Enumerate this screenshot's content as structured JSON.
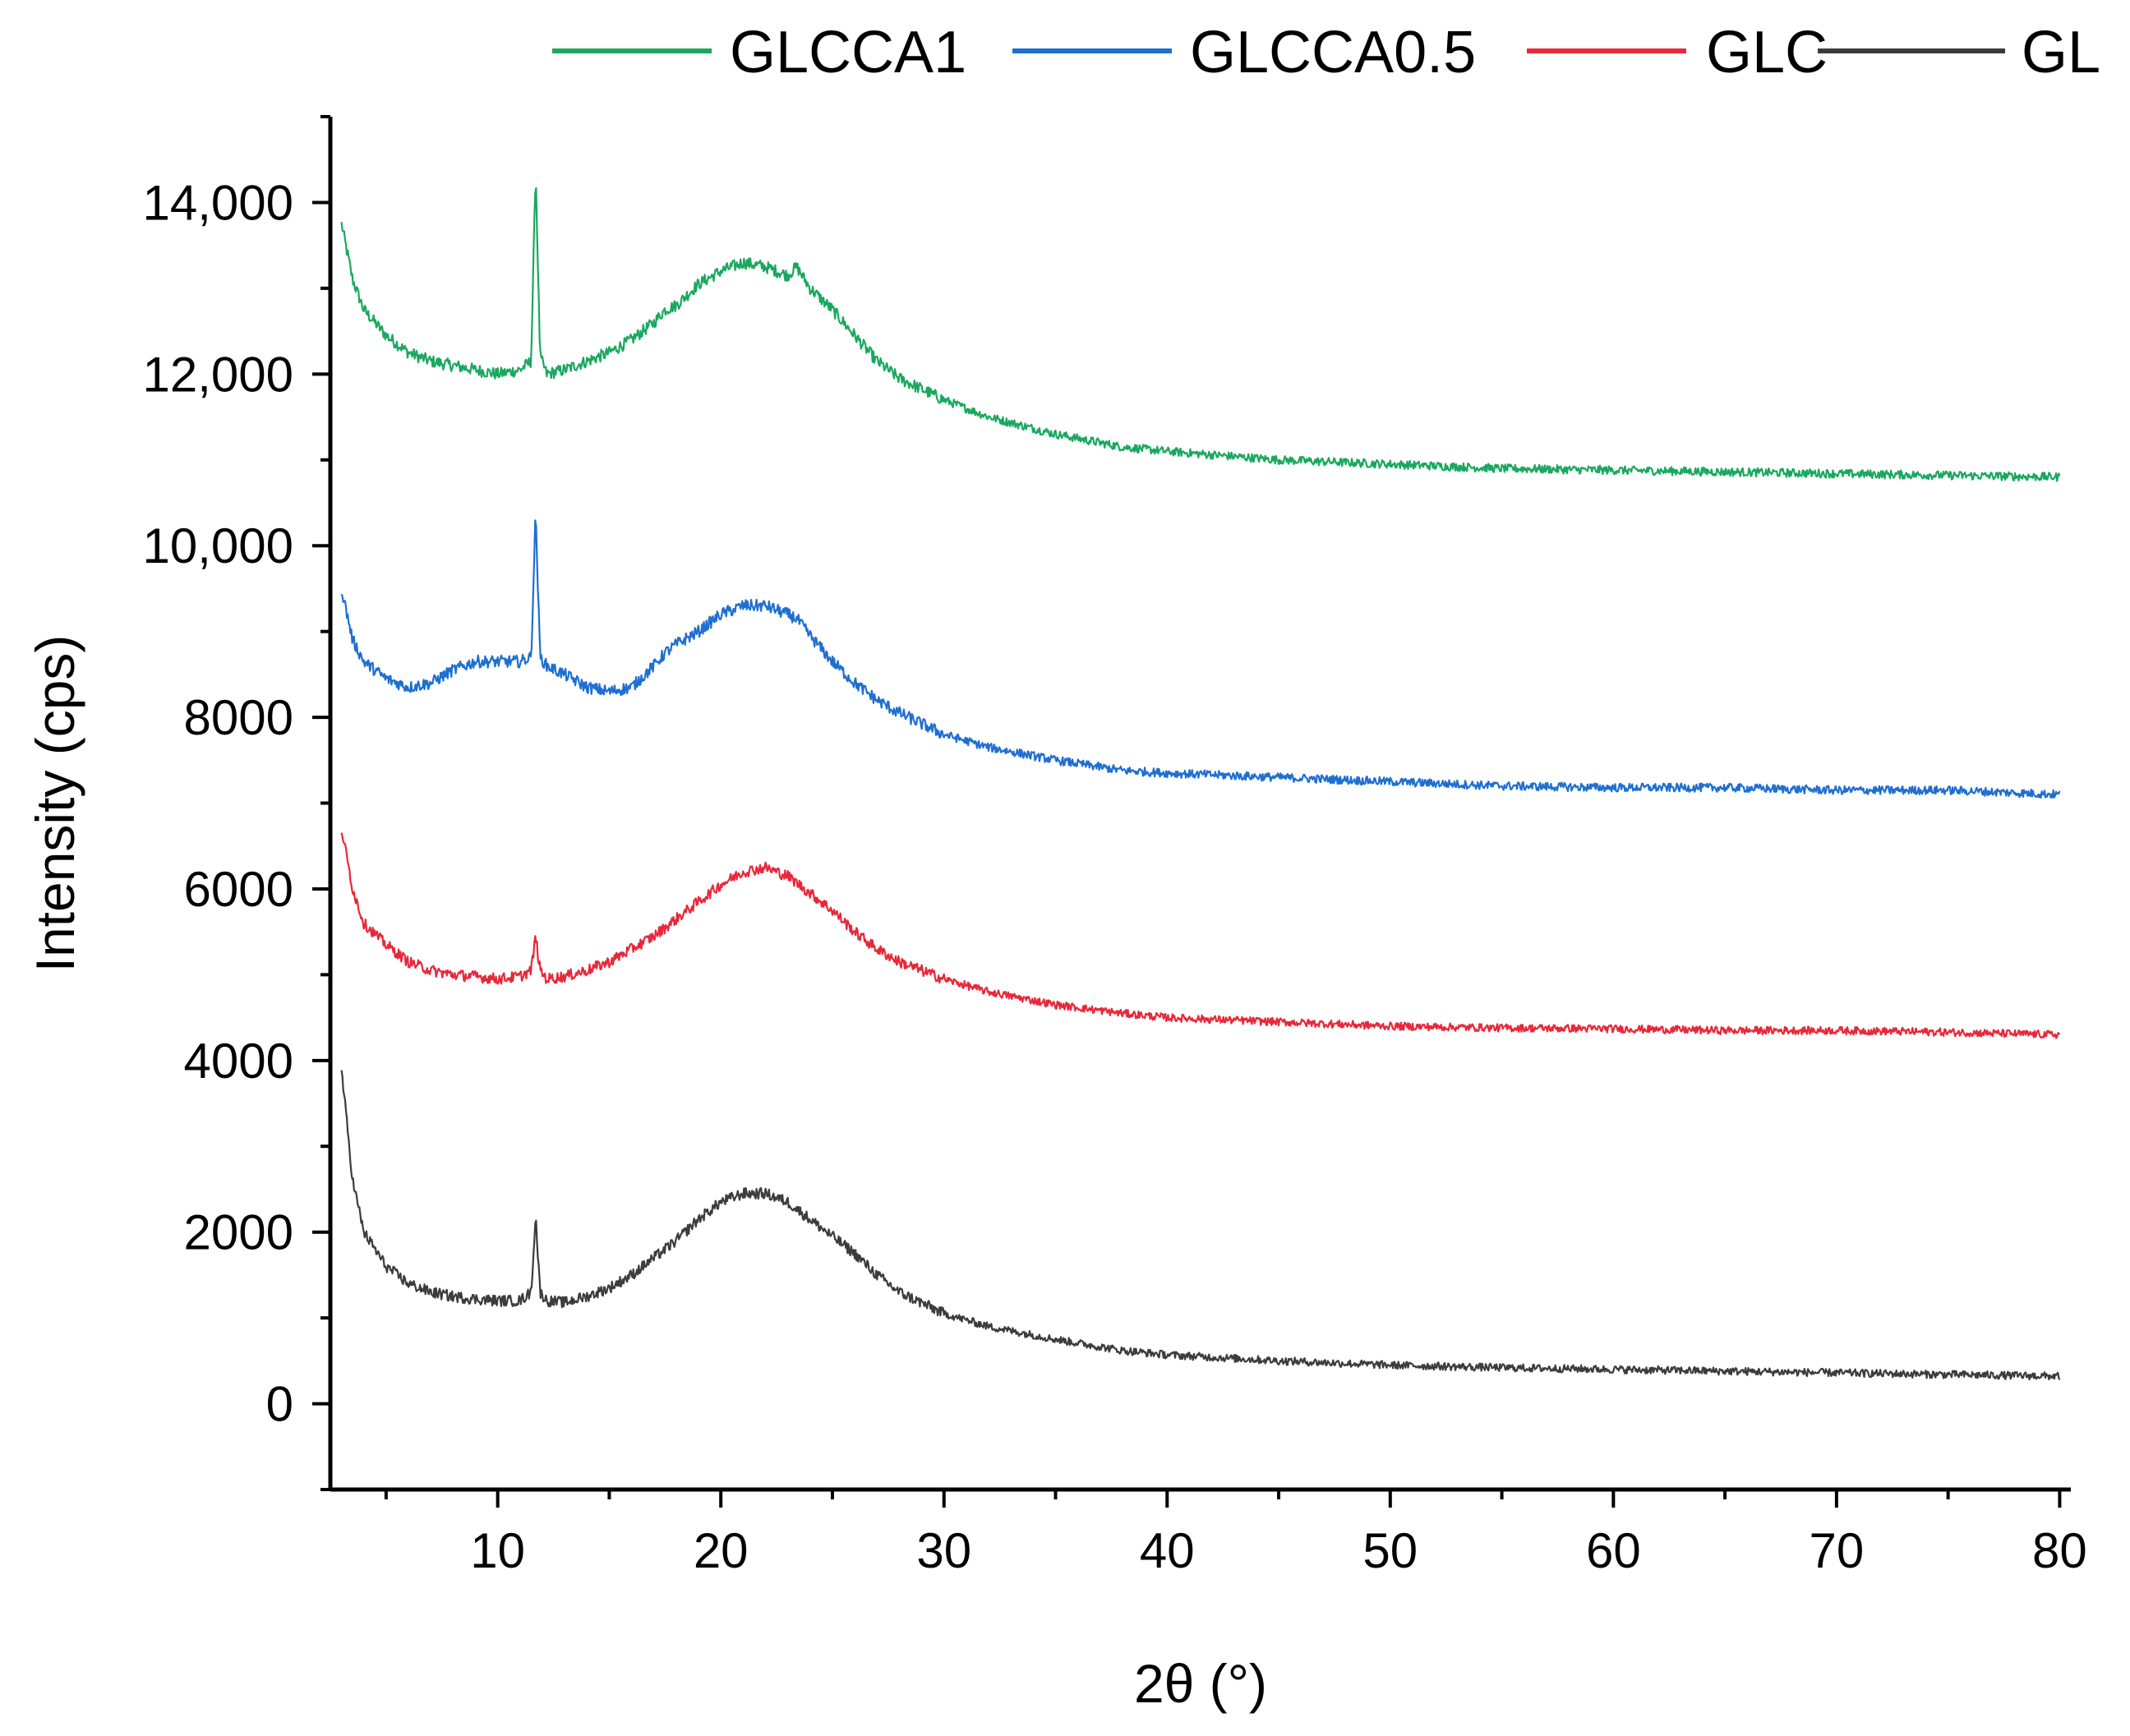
{
  "chart_data": {
    "type": "line",
    "title": "",
    "xlabel": "2θ (°)",
    "ylabel": "Intensity (cps)",
    "xlim": [
      2.5,
      80.5
    ],
    "ylim": [
      -1000,
      15000
    ],
    "x_ticks": [
      {
        "value": 10,
        "label": "10"
      },
      {
        "value": 20,
        "label": "20"
      },
      {
        "value": 30,
        "label": "30"
      },
      {
        "value": 40,
        "label": "40"
      },
      {
        "value": 50,
        "label": "50"
      },
      {
        "value": 60,
        "label": "60"
      },
      {
        "value": 70,
        "label": "70"
      },
      {
        "value": 80,
        "label": "80"
      }
    ],
    "x_minor_ticks": [
      5,
      15,
      25,
      35,
      45,
      55,
      65,
      75
    ],
    "y_ticks": [
      {
        "value": 0,
        "label": "0"
      },
      {
        "value": 2000,
        "label": "2000"
      },
      {
        "value": 4000,
        "label": "4000"
      },
      {
        "value": 6000,
        "label": "6000"
      },
      {
        "value": 8000,
        "label": "8000"
      },
      {
        "value": 10000,
        "label": "10,000"
      },
      {
        "value": 12000,
        "label": "12,000"
      },
      {
        "value": 14000,
        "label": "14,000"
      }
    ],
    "y_minor_ticks": [
      -1000,
      1000,
      3000,
      5000,
      7000,
      9000,
      11000,
      13000,
      15000
    ],
    "grid": false,
    "legend_position": "top",
    "series": [
      {
        "name": "GLCCA1",
        "color": "#1aa85f",
        "offset": 10700,
        "noise": 55,
        "points": [
          [
            3,
            13750
          ],
          [
            3.5,
            13100
          ],
          [
            4,
            12750
          ],
          [
            5,
            12450
          ],
          [
            6,
            12250
          ],
          [
            7,
            12150
          ],
          [
            8,
            12100
          ],
          [
            9,
            12050
          ],
          [
            10,
            12000
          ],
          [
            11,
            12050
          ],
          [
            11.5,
            12150
          ],
          [
            11.7,
            14400
          ],
          [
            11.9,
            12200
          ],
          [
            12.2,
            12000
          ],
          [
            13,
            12050
          ],
          [
            14,
            12150
          ],
          [
            15,
            12250
          ],
          [
            16,
            12400
          ],
          [
            17,
            12600
          ],
          [
            17.5,
            12750
          ],
          [
            18,
            12800
          ],
          [
            19,
            13050
          ],
          [
            20,
            13200
          ],
          [
            21,
            13300
          ],
          [
            22,
            13250
          ],
          [
            23,
            13150
          ],
          [
            23.4,
            13250
          ],
          [
            24,
            13000
          ],
          [
            25,
            12750
          ],
          [
            26,
            12450
          ],
          [
            27,
            12150
          ],
          [
            28,
            11950
          ],
          [
            30,
            11700
          ],
          [
            32,
            11500
          ],
          [
            35,
            11300
          ],
          [
            38,
            11150
          ],
          [
            40,
            11100
          ],
          [
            45,
            11000
          ],
          [
            50,
            10950
          ],
          [
            55,
            10900
          ],
          [
            60,
            10880
          ],
          [
            65,
            10860
          ],
          [
            70,
            10840
          ],
          [
            75,
            10820
          ],
          [
            80,
            10800
          ]
        ]
      },
      {
        "name": "GLCCA0.5",
        "color": "#1f6fd1",
        "offset": 7000,
        "noise": 55,
        "points": [
          [
            3,
            9500
          ],
          [
            3.5,
            8900
          ],
          [
            4,
            8650
          ],
          [
            5,
            8450
          ],
          [
            6,
            8350
          ],
          [
            7,
            8400
          ],
          [
            8,
            8550
          ],
          [
            9,
            8650
          ],
          [
            10,
            8650
          ],
          [
            11,
            8650
          ],
          [
            11.5,
            8700
          ],
          [
            11.7,
            10400
          ],
          [
            11.9,
            8700
          ],
          [
            12.2,
            8600
          ],
          [
            13,
            8500
          ],
          [
            14,
            8350
          ],
          [
            15,
            8300
          ],
          [
            16,
            8350
          ],
          [
            17,
            8600
          ],
          [
            17.5,
            8750
          ],
          [
            18,
            8850
          ],
          [
            19,
            9000
          ],
          [
            20,
            9200
          ],
          [
            21,
            9300
          ],
          [
            22,
            9300
          ],
          [
            23,
            9200
          ],
          [
            23.4,
            9150
          ],
          [
            24,
            8950
          ],
          [
            25,
            8650
          ],
          [
            26,
            8400
          ],
          [
            27,
            8200
          ],
          [
            28,
            8050
          ],
          [
            30,
            7800
          ],
          [
            32,
            7650
          ],
          [
            35,
            7500
          ],
          [
            38,
            7380
          ],
          [
            40,
            7350
          ],
          [
            45,
            7300
          ],
          [
            50,
            7250
          ],
          [
            55,
            7200
          ],
          [
            60,
            7180
          ],
          [
            65,
            7180
          ],
          [
            70,
            7150
          ],
          [
            75,
            7150
          ],
          [
            80,
            7100
          ]
        ]
      },
      {
        "name": "GLC",
        "color": "#e8283a",
        "offset": 4300,
        "noise": 50,
        "points": [
          [
            3,
            6700
          ],
          [
            3.5,
            6000
          ],
          [
            4,
            5600
          ],
          [
            5,
            5350
          ],
          [
            6,
            5150
          ],
          [
            7,
            5050
          ],
          [
            8,
            5000
          ],
          [
            9,
            4980
          ],
          [
            10,
            4950
          ],
          [
            11,
            4980
          ],
          [
            11.5,
            5050
          ],
          [
            11.7,
            5450
          ],
          [
            11.9,
            5050
          ],
          [
            12.2,
            4950
          ],
          [
            13,
            4980
          ],
          [
            14,
            5050
          ],
          [
            15,
            5150
          ],
          [
            16,
            5300
          ],
          [
            17,
            5450
          ],
          [
            18,
            5650
          ],
          [
            19,
            5850
          ],
          [
            20,
            6050
          ],
          [
            21,
            6200
          ],
          [
            22,
            6250
          ],
          [
            23,
            6150
          ],
          [
            24,
            5950
          ],
          [
            25,
            5750
          ],
          [
            26,
            5500
          ],
          [
            27,
            5300
          ],
          [
            28,
            5150
          ],
          [
            30,
            4950
          ],
          [
            32,
            4800
          ],
          [
            35,
            4650
          ],
          [
            38,
            4550
          ],
          [
            40,
            4500
          ],
          [
            45,
            4450
          ],
          [
            50,
            4400
          ],
          [
            55,
            4380
          ],
          [
            60,
            4370
          ],
          [
            65,
            4350
          ],
          [
            70,
            4350
          ],
          [
            75,
            4330
          ],
          [
            80,
            4300
          ]
        ]
      },
      {
        "name": "GL",
        "color": "#3c3c3c",
        "offset": 300,
        "noise": 50,
        "points": [
          [
            3,
            3900
          ],
          [
            3.5,
            2600
          ],
          [
            4,
            2000
          ],
          [
            5,
            1600
          ],
          [
            6,
            1400
          ],
          [
            7,
            1300
          ],
          [
            8,
            1250
          ],
          [
            9,
            1220
          ],
          [
            10,
            1200
          ],
          [
            11,
            1200
          ],
          [
            11.5,
            1300
          ],
          [
            11.7,
            2200
          ],
          [
            11.9,
            1300
          ],
          [
            12.2,
            1200
          ],
          [
            13,
            1180
          ],
          [
            14,
            1250
          ],
          [
            15,
            1350
          ],
          [
            16,
            1500
          ],
          [
            17,
            1700
          ],
          [
            18,
            1900
          ],
          [
            19,
            2150
          ],
          [
            20,
            2350
          ],
          [
            21,
            2450
          ],
          [
            22,
            2450
          ],
          [
            23,
            2350
          ],
          [
            24,
            2150
          ],
          [
            25,
            1950
          ],
          [
            26,
            1750
          ],
          [
            27,
            1500
          ],
          [
            28,
            1300
          ],
          [
            30,
            1050
          ],
          [
            32,
            900
          ],
          [
            35,
            750
          ],
          [
            38,
            620
          ],
          [
            40,
            570
          ],
          [
            45,
            500
          ],
          [
            50,
            450
          ],
          [
            55,
            420
          ],
          [
            60,
            400
          ],
          [
            65,
            380
          ],
          [
            70,
            360
          ],
          [
            75,
            340
          ],
          [
            80,
            320
          ]
        ]
      }
    ]
  }
}
